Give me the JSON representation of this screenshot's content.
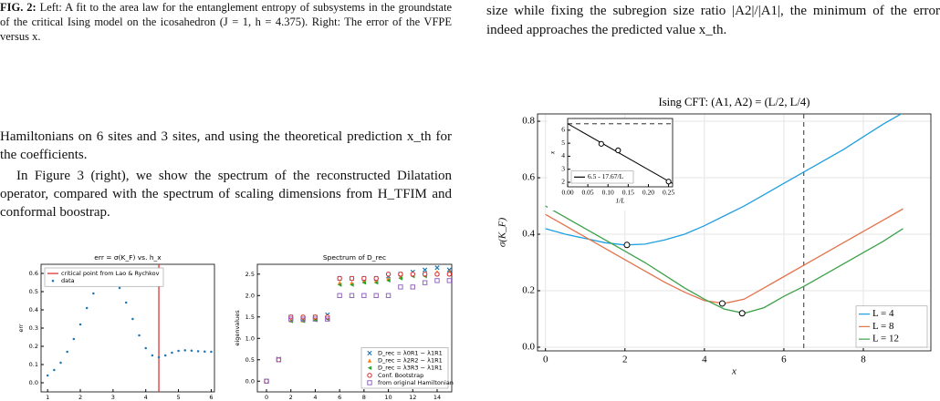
{
  "left_caption": {
    "label": "FIG. 2:",
    "text": "Left: A fit to the area law for the entanglement entropy of subsystems in the groundstate of the critical Ising model on the icosahedron (J = 1, h = 4.375). Right: The error of the VFPE versus x."
  },
  "left_paragraphs": [
    "Hamiltonians on 6 sites and 3 sites, and using the theoretical prediction x_th for the coefficients.",
    "In Figure 3 (right), we show the spectrum of the reconstructed Dilatation operator, compared with the spectrum of scaling dimensions from H_TFIM and conformal boostrap."
  ],
  "right_paragraph": "size while fixing the subregion size ratio |A2|/|A1|, the minimum of the error indeed approaches the predicted value x_th.",
  "figures": [
    {
      "type": "scatter",
      "title": "err = σ(K_F) vs. h_x",
      "xlabel": "h_x",
      "ylabel": "err",
      "xlim": [
        0.8,
        6.1
      ],
      "ylim": [
        -0.05,
        0.65
      ],
      "xticks": [
        1,
        2,
        3,
        4,
        5,
        6
      ],
      "yticks": [
        {
          "value": 0,
          "label": "0.0"
        },
        {
          "value": 0.1,
          "label": "0.1"
        },
        {
          "value": 0.2,
          "label": "0.2"
        },
        {
          "value": 0.3,
          "label": "0.3"
        },
        {
          "value": 0.4,
          "label": "0.4"
        },
        {
          "value": 0.5,
          "label": "0.5"
        },
        {
          "value": 0.6,
          "label": "0.6"
        }
      ],
      "legend": "upper left",
      "grid": false,
      "series": [
        {
          "name": "data",
          "color": "#1f77b4",
          "mode": "markers",
          "marker": "dot",
          "x": [
            1.0,
            1.2,
            1.4,
            1.6,
            1.8,
            2.0,
            2.2,
            2.4,
            2.6,
            2.8,
            3.0,
            3.2,
            3.4,
            3.6,
            3.8,
            4.0,
            4.2,
            4.4,
            4.6,
            4.8,
            5.0,
            5.2,
            5.4,
            5.6,
            5.8,
            6.0
          ],
          "values": [
            0.04,
            0.07,
            0.11,
            0.17,
            0.24,
            0.32,
            0.41,
            0.49,
            0.56,
            0.6,
            0.58,
            0.52,
            0.44,
            0.35,
            0.26,
            0.19,
            0.15,
            0.14,
            0.15,
            0.165,
            0.175,
            0.178,
            0.176,
            0.173,
            0.171,
            0.17
          ]
        }
      ],
      "vline": {
        "name": "critical point from Lao & Rychkov",
        "x": 4.4,
        "color": "#d62728"
      }
    },
    {
      "type": "scatter",
      "title": "Spectrum of D_rec",
      "xlabel": "index",
      "ylabel": "eigenvalues",
      "xlim": [
        -0.75,
        15.2
      ],
      "ylim": [
        -0.25,
        2.73
      ],
      "xticks": [
        0,
        2,
        4,
        6,
        8,
        10,
        12,
        14
      ],
      "yticks": [
        {
          "value": 0,
          "label": "0.0"
        },
        {
          "value": 0.5,
          "label": "0.5"
        },
        {
          "value": 1,
          "label": "1.0"
        },
        {
          "value": 1.5,
          "label": "1.5"
        },
        {
          "value": 2,
          "label": "2.0"
        },
        {
          "value": 2.5,
          "label": "2.5"
        }
      ],
      "legend": "lower right",
      "grid": false,
      "x": [
        0,
        1,
        2,
        3,
        4,
        5,
        6,
        7,
        8,
        9,
        10,
        11,
        12,
        13,
        14,
        15
      ],
      "series": [
        {
          "name": "D_rec = λ0R1 − λ1R1",
          "color": "#1f77b4",
          "mode": "markers",
          "marker": "cross",
          "values": [
            0,
            0.52,
            1.5,
            1.45,
            1.5,
            1.55,
            2.4,
            2.4,
            2.4,
            2.4,
            2.45,
            2.5,
            2.55,
            2.6,
            2.65,
            2.6
          ]
        },
        {
          "name": "D_rec = λ2R2 − λ1R1",
          "color": "#ff7f0e",
          "mode": "markers",
          "marker": "triangle",
          "values": [
            0,
            0.5,
            1.42,
            1.42,
            1.45,
            1.5,
            2.3,
            2.3,
            2.35,
            2.35,
            2.4,
            2.45,
            2.5,
            2.5,
            2.55,
            2.55
          ]
        },
        {
          "name": "D_rec = λ3R3 − λ1R1",
          "color": "#2ca02c",
          "mode": "markers",
          "marker": "tri-left",
          "values": [
            0,
            0.5,
            1.4,
            1.4,
            1.42,
            1.45,
            2.25,
            2.25,
            2.3,
            2.3,
            2.35,
            2.4,
            2.45,
            2.45,
            2.5,
            2.5
          ]
        },
        {
          "name": "Conf. Bootstrap",
          "color": "#d62728",
          "mode": "markers",
          "marker": "circle",
          "values": [
            0,
            0.5,
            1.5,
            1.5,
            1.5,
            1.5,
            2.4,
            2.4,
            2.4,
            2.4,
            2.5,
            2.5,
            2.5,
            2.5,
            2.5,
            2.5
          ]
        },
        {
          "name": "from original Hamiltonian",
          "color": "#9467bd",
          "mode": "markers",
          "marker": "square",
          "values": [
            0,
            0.5,
            1.45,
            1.45,
            1.45,
            1.45,
            2,
            2,
            2,
            2,
            2,
            2.2,
            2.2,
            2.3,
            2.35,
            2.35
          ]
        }
      ]
    },
    {
      "type": "line",
      "title": "Ising CFT: (A1, A2) = (L/2, L/4)",
      "xlabel": "x",
      "ylabel": "σ(K_F)",
      "xlim": [
        -0.2,
        9.7
      ],
      "ylim": [
        -0.013,
        0.826
      ],
      "xticks": [
        0,
        2,
        4,
        6,
        8
      ],
      "yticks": [
        {
          "value": 0,
          "label": "0.0"
        },
        {
          "value": 0.2,
          "label": "0.2"
        },
        {
          "value": 0.4,
          "label": "0.4"
        },
        {
          "value": 0.6,
          "label": "0.6"
        },
        {
          "value": 0.8,
          "label": "0.8"
        }
      ],
      "legend": "lower right",
      "grid": true,
      "x": [
        0,
        0.5,
        1,
        1.5,
        2,
        2.5,
        3,
        3.5,
        4,
        4.5,
        5,
        5.5,
        6,
        6.5,
        7,
        7.5,
        8,
        8.5,
        9
      ],
      "series": [
        {
          "name": "L = 4",
          "color": "#1f9ee0",
          "mode": "line",
          "values": [
            0.42,
            0.4,
            0.385,
            0.37,
            0.362,
            0.365,
            0.38,
            0.4,
            0.43,
            0.465,
            0.5,
            0.54,
            0.58,
            0.62,
            0.66,
            0.7,
            0.745,
            0.79,
            0.83
          ]
        },
        {
          "name": "L = 8",
          "color": "#e2734a",
          "mode": "line",
          "values": [
            0.47,
            0.43,
            0.39,
            0.35,
            0.31,
            0.27,
            0.23,
            0.195,
            0.165,
            0.155,
            0.17,
            0.21,
            0.25,
            0.29,
            0.33,
            0.37,
            0.41,
            0.45,
            0.49
          ]
        },
        {
          "name": "L = 12",
          "color": "#3ca14a",
          "mode": "line",
          "values": [
            0.5,
            0.46,
            0.42,
            0.38,
            0.34,
            0.3,
            0.255,
            0.21,
            0.17,
            0.135,
            0.12,
            0.14,
            0.18,
            0.215,
            0.255,
            0.295,
            0.335,
            0.375,
            0.42
          ]
        },
        {
          "color": "#000000",
          "mode": "markers",
          "marker": "circle",
          "x": [
            2.05,
            4.45,
            4.95
          ],
          "values": [
            0.362,
            0.155,
            0.12
          ]
        }
      ],
      "vline": {
        "x": 6.5,
        "color": "#555555",
        "dash": true
      },
      "inset": {
        "type": "scatter",
        "xlabel": "1/L",
        "ylabel": "x",
        "xlim": [
          0,
          0.26
        ],
        "ylim": [
          1.65,
          6.9
        ],
        "xticks": [
          {
            "value": 0,
            "label": "0.00"
          },
          {
            "value": 0.05,
            "label": "0.05"
          },
          {
            "value": 0.1,
            "label": "0.10"
          },
          {
            "value": 0.15,
            "label": "0.15"
          },
          {
            "value": 0.2,
            "label": "0.20"
          },
          {
            "value": 0.25,
            "label": "0.25"
          }
        ],
        "yticks": [
          2,
          3,
          4,
          5,
          6
        ],
        "legend": "lower left",
        "grid": false,
        "series": [
          {
            "color": "#000000",
            "mode": "markers",
            "marker": "circle",
            "x": [
              0.0833,
              0.125,
              0.25
            ],
            "values": [
              4.95,
              4.45,
              2.05
            ]
          }
        ],
        "hline": {
          "y": 6.5,
          "color": "#555555",
          "dash": true
        },
        "fit": {
          "intercept": 6.5,
          "slope": -17.67,
          "label": "6.5 - 17.67/L",
          "color": "#000000"
        }
      }
    }
  ]
}
